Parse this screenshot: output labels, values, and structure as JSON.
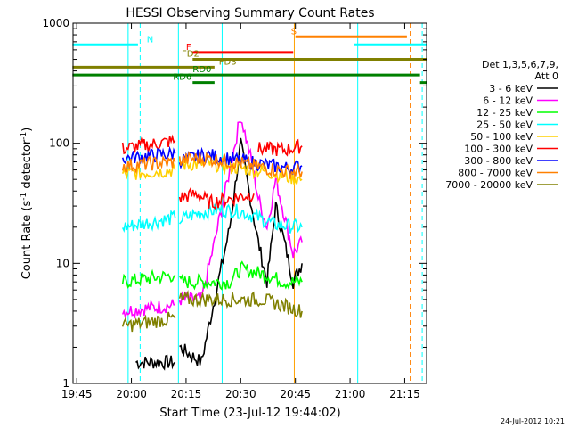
{
  "chart_data": {
    "type": "line",
    "title": "HESSI Observing Summary Count Rates",
    "xlabel": "Start Time (23-Jul-12 19:44:02)",
    "ylabel_main": "Count Rate (s",
    "ylabel_sup": "-1",
    "ylabel_tail": " detector",
    "ylabel_end": ")",
    "yscale": "log",
    "ylim": [
      1,
      1000
    ],
    "xlim_minutes": [
      19.733,
      21.35
    ],
    "x_tick_labels": [
      "19:45",
      "20:00",
      "20:15",
      "20:30",
      "20:45",
      "21:00",
      "21:15"
    ],
    "x_tick_hours": [
      19.75,
      20.0,
      20.25,
      20.5,
      20.75,
      21.0,
      21.25
    ],
    "y_tick_labels": [
      "1",
      "10",
      "100",
      "1000"
    ],
    "y_tick_values": [
      1,
      10,
      100,
      1000
    ],
    "legend_header": [
      "Det 1,3,5,6,7,9,",
      "Att 0"
    ],
    "series": [
      {
        "name": "3 - 6 keV",
        "color": "#000000",
        "segments": [
          [
            [
              20.02,
              1.5
            ],
            [
              20.2,
              1.5
            ]
          ],
          [
            [
              20.22,
              2
            ],
            [
              20.32,
              1.5
            ],
            [
              20.38,
              5
            ],
            [
              20.45,
              20
            ],
            [
              20.5,
              100
            ],
            [
              20.55,
              30
            ],
            [
              20.58,
              15
            ],
            [
              20.62,
              7
            ],
            [
              20.66,
              30
            ],
            [
              20.7,
              15
            ],
            [
              20.74,
              7
            ],
            [
              20.78,
              10
            ]
          ]
        ]
      },
      {
        "name": "6 - 12 keV",
        "color": "#ff00ff",
        "segments": [
          [
            [
              19.96,
              4
            ],
            [
              20.2,
              4.5
            ]
          ],
          [
            [
              20.22,
              5
            ],
            [
              20.32,
              5
            ],
            [
              20.38,
              15
            ],
            [
              20.45,
              60
            ],
            [
              20.5,
              170
            ],
            [
              20.55,
              70
            ],
            [
              20.58,
              35
            ],
            [
              20.62,
              20
            ],
            [
              20.66,
              50
            ],
            [
              20.7,
              25
            ],
            [
              20.74,
              12
            ],
            [
              20.78,
              15
            ]
          ]
        ]
      },
      {
        "name": "12 - 25 keV",
        "color": "#00ff00",
        "segments": [
          [
            [
              19.96,
              7
            ],
            [
              20.2,
              8
            ]
          ],
          [
            [
              20.22,
              7
            ],
            [
              20.32,
              7
            ],
            [
              20.45,
              7
            ],
            [
              20.5,
              9
            ],
            [
              20.62,
              8
            ],
            [
              20.7,
              7
            ],
            [
              20.78,
              7
            ]
          ]
        ]
      },
      {
        "name": "25 - 50 keV",
        "color": "#00ffff",
        "segments": [
          [
            [
              19.96,
              20
            ],
            [
              20.2,
              24
            ]
          ],
          [
            [
              20.22,
              23
            ],
            [
              20.3,
              26
            ],
            [
              20.4,
              28
            ],
            [
              20.5,
              27
            ],
            [
              20.58,
              24
            ],
            [
              20.66,
              21
            ],
            [
              20.78,
              20
            ]
          ]
        ]
      },
      {
        "name": "50 - 100 keV",
        "color": "#ffd000",
        "segments": [
          [
            [
              19.96,
              55
            ],
            [
              20.2,
              60
            ]
          ],
          [
            [
              20.22,
              66
            ],
            [
              20.34,
              68
            ],
            [
              20.5,
              62
            ],
            [
              20.62,
              58
            ],
            [
              20.72,
              52
            ],
            [
              20.78,
              50
            ]
          ]
        ]
      },
      {
        "name": "100 - 300 keV",
        "color": "#ff0000",
        "segments": [
          [
            [
              19.96,
              90
            ],
            [
              20.2,
              105
            ]
          ],
          [
            [
              20.22,
              35
            ],
            [
              20.3,
              38
            ],
            [
              20.36,
              32
            ],
            [
              20.5,
              36
            ],
            [
              20.56,
              38
            ]
          ],
          [
            [
              20.58,
              90
            ],
            [
              20.7,
              88
            ],
            [
              20.78,
              95
            ]
          ]
        ]
      },
      {
        "name": "300 - 800 keV",
        "color": "#0000ff",
        "segments": [
          [
            [
              19.96,
              75
            ],
            [
              20.2,
              82
            ]
          ],
          [
            [
              20.22,
              72
            ],
            [
              20.34,
              80
            ],
            [
              20.5,
              72
            ],
            [
              20.62,
              66
            ],
            [
              20.72,
              62
            ],
            [
              20.78,
              65
            ]
          ]
        ]
      },
      {
        "name": "800 - 7000 keV",
        "color": "#ff8000",
        "segments": [
          [
            [
              19.96,
              65
            ],
            [
              20.2,
              70
            ]
          ],
          [
            [
              20.22,
              72
            ],
            [
              20.3,
              75
            ],
            [
              20.4,
              73
            ],
            [
              20.5,
              68
            ],
            [
              20.62,
              62
            ],
            [
              20.72,
              58
            ],
            [
              20.78,
              58
            ]
          ]
        ]
      },
      {
        "name": "7000 - 20000 keV",
        "color": "#808000",
        "segments": [
          [
            [
              19.96,
              3
            ],
            [
              20.2,
              3.5
            ]
          ],
          [
            [
              20.22,
              5
            ],
            [
              20.32,
              5
            ],
            [
              20.45,
              5
            ],
            [
              20.6,
              5
            ],
            [
              20.78,
              4
            ]
          ]
        ]
      }
    ],
    "flag_bars": [
      {
        "label": "N",
        "color": "#00ffff",
        "spans": [
          [
            19.73,
            20.03
          ],
          [
            21.02,
            21.35
          ]
        ],
        "y": 660,
        "label_h": 20.07
      },
      {
        "label": "S",
        "color": "#ff8000",
        "spans": [
          [
            20.75,
            21.26
          ]
        ],
        "y": 770,
        "label_h": 20.73
      },
      {
        "label": "F",
        "color": "#ff0000",
        "spans": [
          [
            20.28,
            20.74
          ]
        ],
        "y": 570,
        "label_h": 20.25
      },
      {
        "label": "FD2",
        "color": "#808000",
        "spans": [
          [
            20.28,
            21.35
          ]
        ],
        "y": 500,
        "label_h": 20.23
      },
      {
        "label": "FD3",
        "color": "#808000",
        "spans": [
          [
            19.73,
            20.38
          ]
        ],
        "y": 430,
        "label_h": 20.4
      },
      {
        "label": "RD0",
        "color": "#008000",
        "spans": [
          [
            19.73,
            21.32
          ]
        ],
        "y": 370,
        "label_h": 20.28
      },
      {
        "label": "RD6",
        "color": "#008000",
        "spans": [
          [
            20.28,
            20.38
          ],
          [
            21.32,
            21.35
          ]
        ],
        "y": 320,
        "label_h": 20.19
      }
    ],
    "vertical_lines": [
      {
        "h": 20.04,
        "color": "#00ffff",
        "dashed": true
      },
      {
        "h": 19.985,
        "color": "#00ffff",
        "dashed": false
      },
      {
        "h": 20.215,
        "color": "#00ffff",
        "dashed": false
      },
      {
        "h": 20.415,
        "color": "#00ffff",
        "dashed": false
      },
      {
        "h": 20.745,
        "color": "#ffa000",
        "dashed": false
      },
      {
        "h": 21.035,
        "color": "#00ffff",
        "dashed": false
      },
      {
        "h": 21.275,
        "color": "#ff8000",
        "dashed": true
      },
      {
        "h": 21.33,
        "color": "#00ffff",
        "dashed": true
      }
    ],
    "timestamp": "24-Jul-2012 10:21"
  }
}
